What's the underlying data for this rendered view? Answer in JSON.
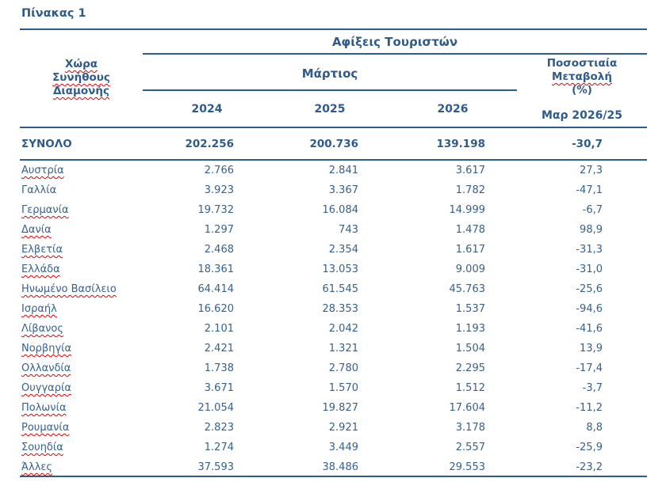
{
  "page_title": "Πίνακας 1",
  "table": {
    "group_header": "Αφίξεις Τουριστών",
    "row_header_lines": [
      "Χώρα",
      "Συνήθους",
      "Διαμονής"
    ],
    "month_header": "Μάρτιος",
    "years": [
      "2024",
      "2025",
      "2026"
    ],
    "pct_header_lines": [
      "Ποσοστιαία",
      "Μεταβολή",
      "(%)"
    ],
    "pct_subheader": "Μαρ 2026/25",
    "total": {
      "label": "ΣΥΝΟΛΟ",
      "y2024": "202.256",
      "y2025": "200.736",
      "y2026": "139.198",
      "pct": "-30,7"
    },
    "rows": [
      {
        "country": "Αυστρία",
        "y2024": "2.766",
        "y2025": "2.841",
        "y2026": "3.617",
        "pct": "27,3",
        "misspelled": true
      },
      {
        "country": "Γαλλία",
        "y2024": "3.923",
        "y2025": "3.367",
        "y2026": "1.782",
        "pct": "-47,1",
        "misspelled": false
      },
      {
        "country": "Γερμανία",
        "y2024": "19.732",
        "y2025": "16.084",
        "y2026": "14.999",
        "pct": "-6,7",
        "misspelled": true
      },
      {
        "country": "Δανία",
        "y2024": "1.297",
        "y2025": "743",
        "y2026": "1.478",
        "pct": "98,9",
        "misspelled": true
      },
      {
        "country": "Ελβετία",
        "y2024": "2.468",
        "y2025": "2.354",
        "y2026": "1.617",
        "pct": "-31,3",
        "misspelled": true
      },
      {
        "country": "Ελλάδα",
        "y2024": "18.361",
        "y2025": "13.053",
        "y2026": "9.009",
        "pct": "-31,0",
        "misspelled": true
      },
      {
        "country": "Ηνωμένο Βασίλειο",
        "y2024": "64.414",
        "y2025": "61.545",
        "y2026": "45.763",
        "pct": "-25,6",
        "misspelled": true
      },
      {
        "country": "Ισραήλ",
        "y2024": "16.620",
        "y2025": "28.353",
        "y2026": "1.537",
        "pct": "-94,6",
        "misspelled": true
      },
      {
        "country": "Λίβανος",
        "y2024": "2.101",
        "y2025": "2.042",
        "y2026": "1.193",
        "pct": "-41,6",
        "misspelled": true
      },
      {
        "country": "Νορβηγία",
        "y2024": "2.421",
        "y2025": "1.321",
        "y2026": "1.504",
        "pct": "13,9",
        "misspelled": true
      },
      {
        "country": "Ολλανδία",
        "y2024": "1.738",
        "y2025": "2.780",
        "y2026": "2.295",
        "pct": "-17,4",
        "misspelled": true
      },
      {
        "country": "Ουγγαρία",
        "y2024": "3.671",
        "y2025": "1.570",
        "y2026": "1.512",
        "pct": "-3,7",
        "misspelled": true
      },
      {
        "country": "Πολωνία",
        "y2024": "21.054",
        "y2025": "19.827",
        "y2026": "17.604",
        "pct": "-11,2",
        "misspelled": true
      },
      {
        "country": "Ρουμανία",
        "y2024": "2.823",
        "y2025": "2.921",
        "y2026": "3.178",
        "pct": "8,8",
        "misspelled": true
      },
      {
        "country": "Σουηδία",
        "y2024": "1.274",
        "y2025": "3.449",
        "y2026": "2.557",
        "pct": "-25,9",
        "misspelled": true
      },
      {
        "country": "Άλλες",
        "y2024": "37.593",
        "y2025": "38.486",
        "y2026": "29.553",
        "pct": "-23,2",
        "misspelled": true
      }
    ]
  },
  "colors": {
    "header_blue": "#2E5B8C",
    "text_blue": "#35618D",
    "rule_blue": "#2E5B8C",
    "squiggle_red": "#E00000",
    "background": "#FFFFFF"
  }
}
